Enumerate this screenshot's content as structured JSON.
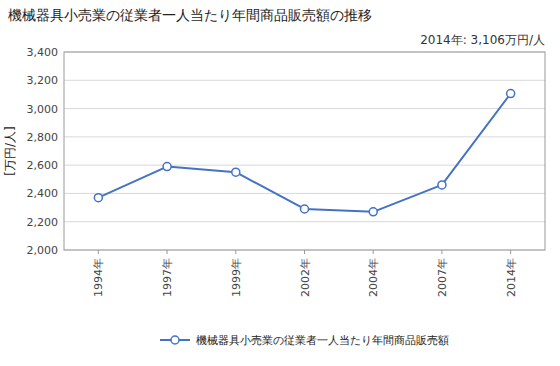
{
  "chart_data": {
    "type": "line",
    "title": "機械器具小売業の従業者一人当たり年間商品販売額の推移",
    "ylabel": "[万円/人]",
    "annotation": "2014年: 3,106万円/人",
    "categories": [
      "1994年",
      "1997年",
      "1999年",
      "2002年",
      "2004年",
      "2007年",
      "2014年"
    ],
    "series": [
      {
        "name": "機械器具小売業の従業者一人当たり年間商品販売額",
        "color": "#4472C4",
        "marker": "circle",
        "values": [
          2370,
          2590,
          2550,
          2290,
          2270,
          2460,
          3106
        ]
      }
    ],
    "ylim": [
      2000,
      3400
    ],
    "yticks": [
      {
        "value": 2000,
        "label": "2,000"
      },
      {
        "value": 2200,
        "label": "2,200"
      },
      {
        "value": 2400,
        "label": "2,400"
      },
      {
        "value": 2600,
        "label": "2,600"
      },
      {
        "value": 2800,
        "label": "2,800"
      },
      {
        "value": 3000,
        "label": "3,000"
      },
      {
        "value": 3200,
        "label": "3,200"
      },
      {
        "value": 3400,
        "label": "3,400"
      }
    ],
    "grid": true,
    "legend": "bottom"
  }
}
